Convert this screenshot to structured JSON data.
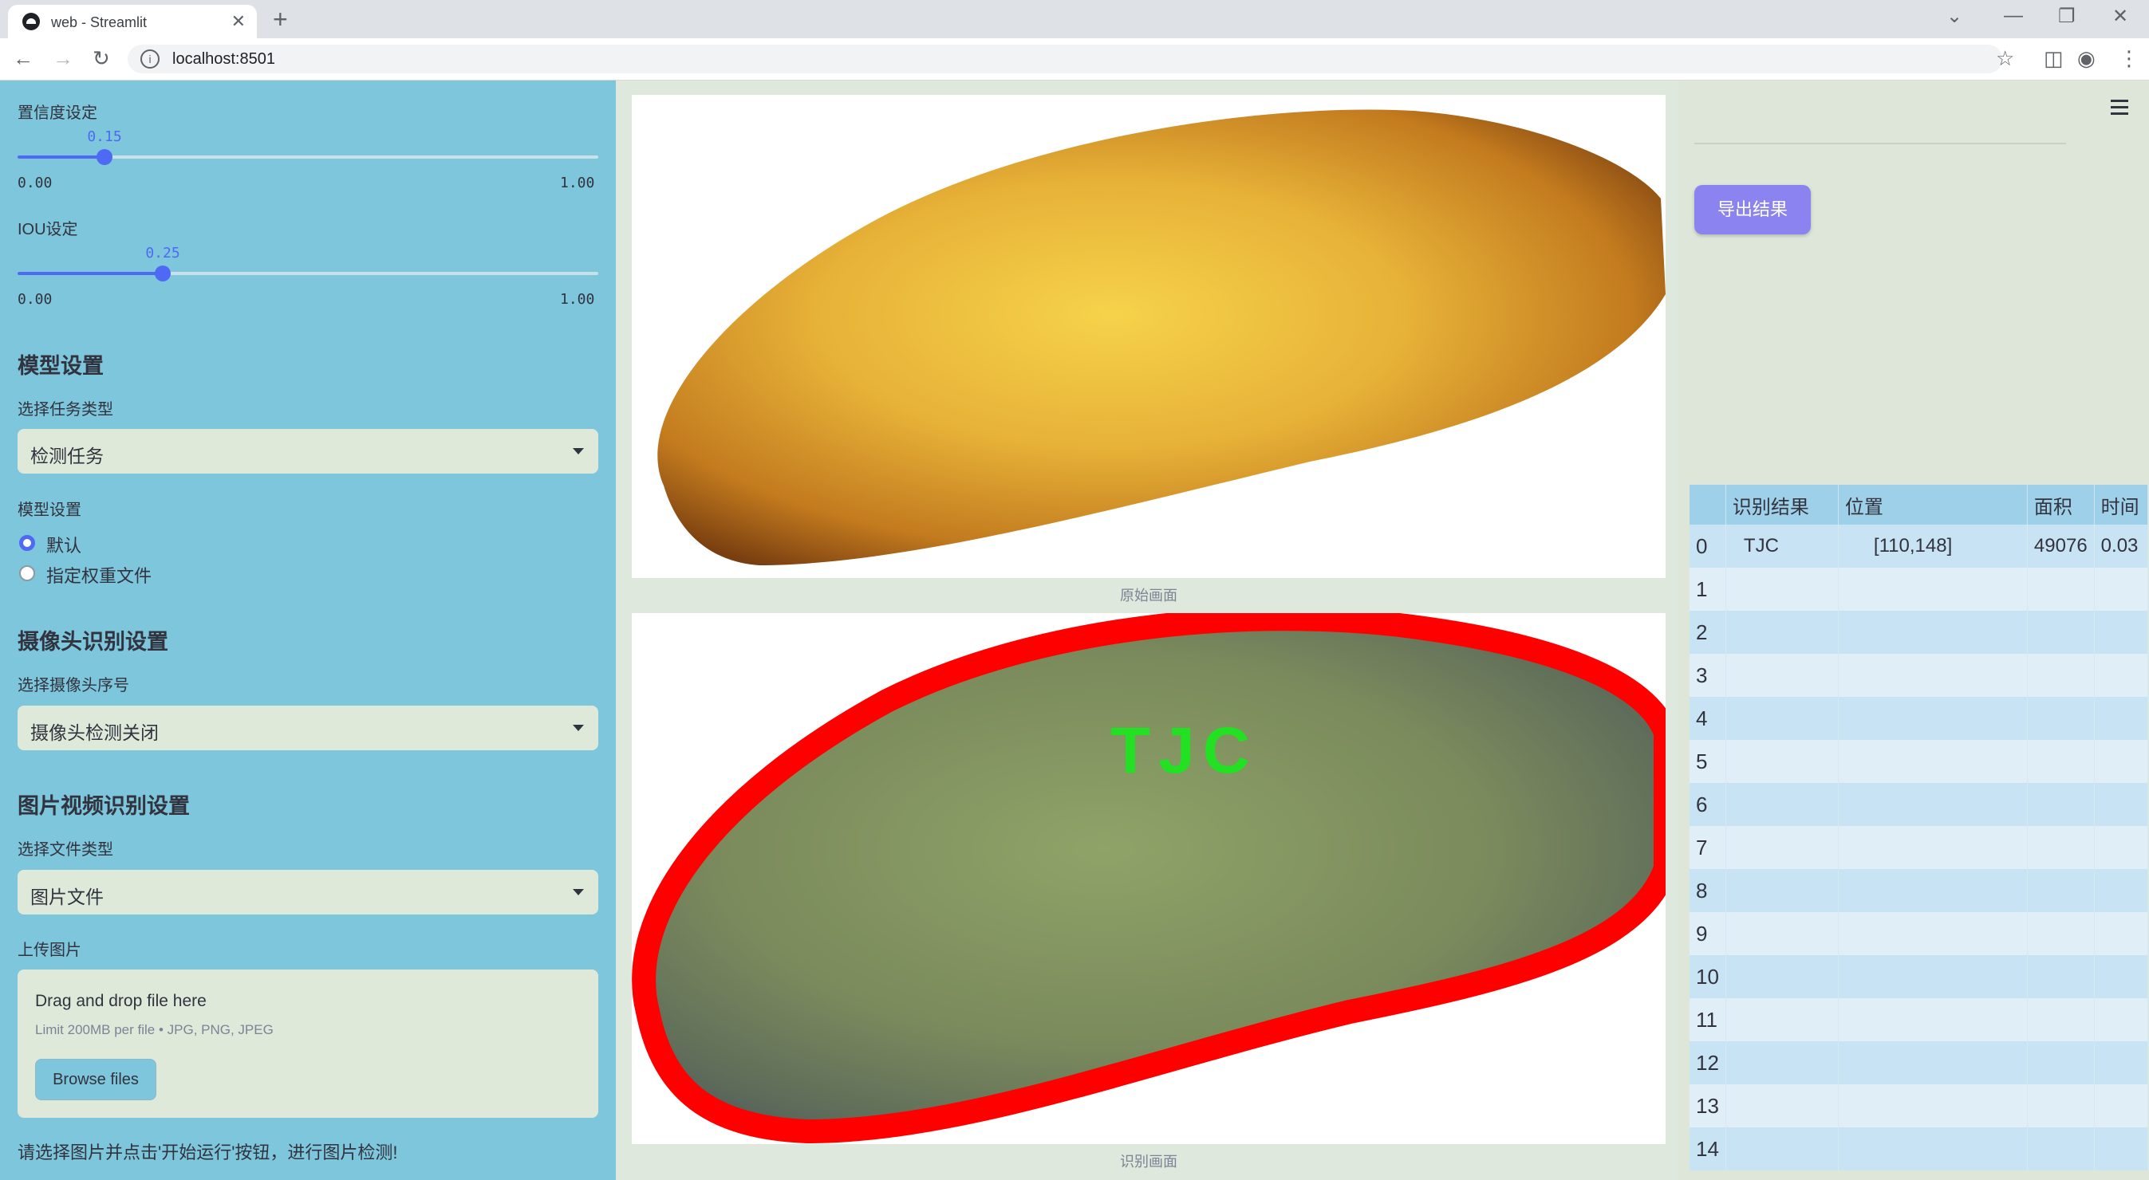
{
  "browser": {
    "tab_title": "web - Streamlit",
    "url": "localhost:8501"
  },
  "sidebar": {
    "conf": {
      "label": "置信度设定",
      "value": 0.15,
      "value_text": "0.15",
      "min_text": "0.00",
      "max_text": "1.00"
    },
    "iou": {
      "label": "IOU设定",
      "value": 0.25,
      "value_text": "0.25",
      "min_text": "0.00",
      "max_text": "1.00"
    },
    "model_heading": "模型设置",
    "task_label": "选择任务类型",
    "task_value": "检测任务",
    "model_label": "模型设置",
    "model_options": [
      "默认",
      "指定权重文件"
    ],
    "camera_heading": "摄像头识别设置",
    "camera_label": "选择摄像头序号",
    "camera_value": "摄像头检测关闭",
    "media_heading": "图片视频识别设置",
    "filetype_label": "选择文件类型",
    "filetype_value": "图片文件",
    "upload_label": "上传图片",
    "upload_drag": "Drag and drop file here",
    "upload_limit": "Limit 200MB per file • JPG, PNG, JPEG",
    "browse_label": "Browse files",
    "hint": "请选择图片并点击'开始运行'按钮，进行图片检测!"
  },
  "main": {
    "original_caption": "原始画面",
    "result_caption": "识别画面",
    "detection_label": "TJC",
    "export_label": "导出结果"
  },
  "table": {
    "headers": [
      "",
      "识别结果",
      "位置",
      "面积",
      "时间"
    ],
    "rows": [
      [
        "0",
        "TJC",
        "[110,148]",
        "49076",
        "0.03"
      ],
      [
        "1",
        "",
        "",
        "",
        ""
      ],
      [
        "2",
        "",
        "",
        "",
        ""
      ],
      [
        "3",
        "",
        "",
        "",
        ""
      ],
      [
        "4",
        "",
        "",
        "",
        ""
      ],
      [
        "5",
        "",
        "",
        "",
        ""
      ],
      [
        "6",
        "",
        "",
        "",
        ""
      ],
      [
        "7",
        "",
        "",
        "",
        ""
      ],
      [
        "8",
        "",
        "",
        "",
        ""
      ],
      [
        "9",
        "",
        "",
        "",
        ""
      ],
      [
        "10",
        "",
        "",
        "",
        ""
      ],
      [
        "11",
        "",
        "",
        "",
        ""
      ],
      [
        "12",
        "",
        "",
        "",
        ""
      ],
      [
        "13",
        "",
        "",
        "",
        ""
      ],
      [
        "14",
        "",
        "",
        "",
        ""
      ]
    ]
  }
}
